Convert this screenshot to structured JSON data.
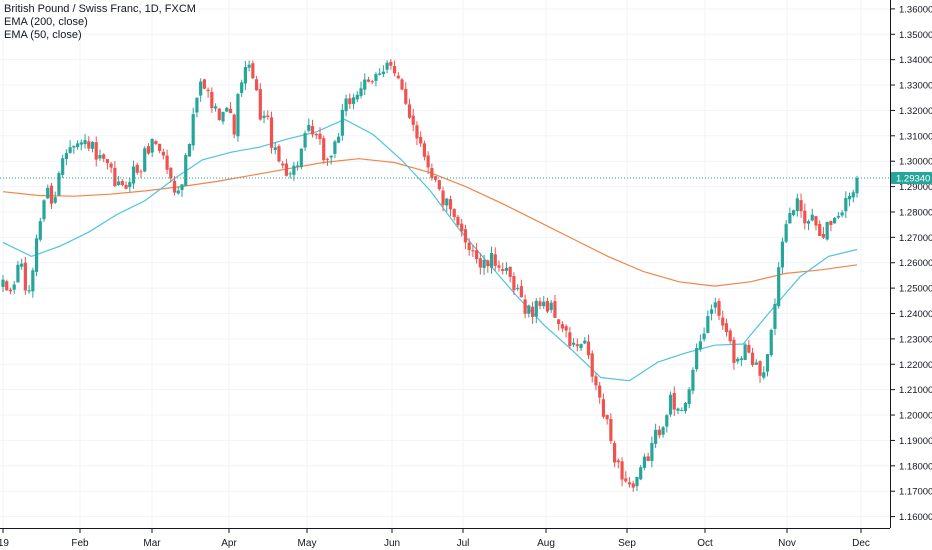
{
  "legend": {
    "symbol": "British Pound / Swiss Franc, 1D, FXCM",
    "ema200": "EMA (200, close)",
    "ema50": "EMA (50, close)"
  },
  "colors": {
    "up": "#26a69a",
    "down": "#ef5350",
    "ema200": "#f4844a",
    "ema50": "#4fc3e0",
    "last_price_line": "#26a69a",
    "grid": "#f0f3fa",
    "axis_text": "#131722"
  },
  "last_price": {
    "value": 1.2934,
    "label": "1.29340"
  },
  "chart_data": {
    "type": "candlestick",
    "title": "British Pound / Swiss Franc, 1D, FXCM",
    "y_ticks": [
      "1.16000",
      "1.17000",
      "1.18000",
      "1.19000",
      "1.20000",
      "1.21000",
      "1.22000",
      "1.23000",
      "1.24000",
      "1.25000",
      "1.26000",
      "1.27000",
      "1.28000",
      "1.29000",
      "1.30000",
      "1.31000",
      "1.32000",
      "1.33000",
      "1.34000",
      "1.35000",
      "1.36000"
    ],
    "ylim": [
      1.1555,
      1.3635
    ],
    "x_ticks": [
      "19",
      "Feb",
      "Mar",
      "Apr",
      "May",
      "Jun",
      "Jul",
      "Aug",
      "Sep",
      "Oct",
      "Nov",
      "Dec"
    ],
    "grid": true,
    "ohlc_path": [
      1.25,
      1.248,
      1.262,
      1.244,
      1.272,
      1.288,
      1.285,
      1.302,
      1.31,
      1.306,
      1.308,
      1.3,
      1.298,
      1.292,
      1.288,
      1.296,
      1.296,
      1.306,
      1.308,
      1.3,
      1.288,
      1.294,
      1.31,
      1.33,
      1.326,
      1.318,
      1.324,
      1.312,
      1.334,
      1.336,
      1.32,
      1.315,
      1.3,
      1.298,
      1.296,
      1.305,
      1.312,
      1.306,
      1.3,
      1.308,
      1.32,
      1.326,
      1.33,
      1.328,
      1.336,
      1.34,
      1.332,
      1.324,
      1.316,
      1.306,
      1.298,
      1.288,
      1.282,
      1.274,
      1.27,
      1.266,
      1.258,
      1.26,
      1.261,
      1.254,
      1.248,
      1.244,
      1.24,
      1.246,
      1.242,
      1.238,
      1.23,
      1.226,
      1.228,
      1.216,
      1.204,
      1.192,
      1.18,
      1.174,
      1.17,
      1.18,
      1.188,
      1.196,
      1.206,
      1.2,
      1.208,
      1.22,
      1.232,
      1.244,
      1.238,
      1.228,
      1.22,
      1.23,
      1.22,
      1.216,
      1.238,
      1.26,
      1.278,
      1.284,
      1.278,
      1.278,
      1.272,
      1.276,
      1.28,
      1.286,
      1.2934
    ],
    "ema200": [
      1.288,
      1.2865,
      1.2862,
      1.287,
      1.2883,
      1.29,
      1.292,
      1.2945,
      1.297,
      1.2995,
      1.301,
      1.2995,
      1.2955,
      1.29,
      1.2835,
      1.2765,
      1.2695,
      1.2625,
      1.2565,
      1.2525,
      1.2508,
      1.2525,
      1.2558,
      1.2572,
      1.2592
    ],
    "ema50": [
      1.268,
      1.2625,
      1.2665,
      1.272,
      1.279,
      1.2845,
      1.293,
      1.3005,
      1.3035,
      1.3055,
      1.3088,
      1.3115,
      1.3165,
      1.3105,
      1.3005,
      1.2885,
      1.2735,
      1.2605,
      1.2475,
      1.2355,
      1.2255,
      1.2148,
      1.2135,
      1.2208,
      1.2245,
      1.2275,
      1.228,
      1.2415,
      1.2545,
      1.2625,
      1.2652
    ]
  }
}
